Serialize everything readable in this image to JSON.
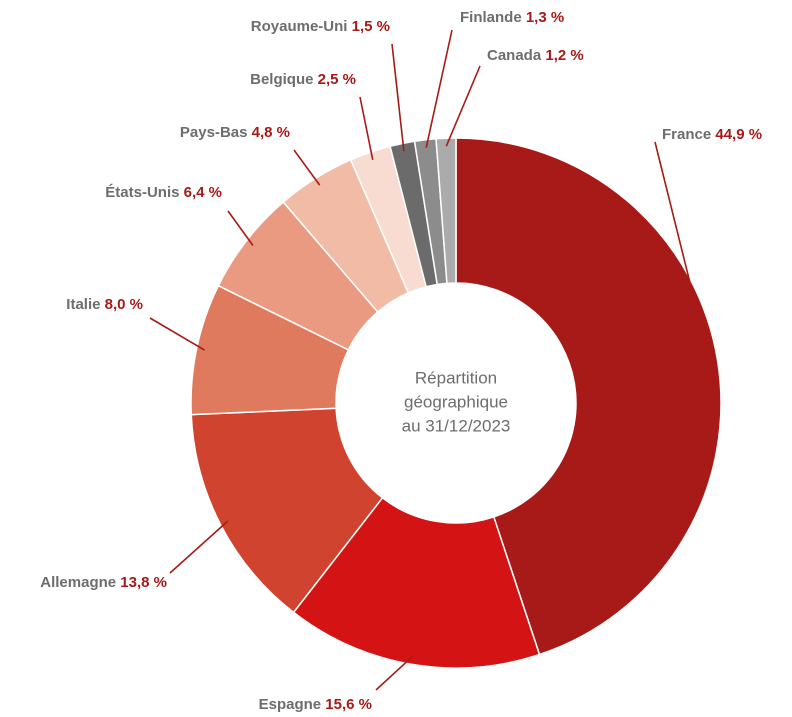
{
  "chart_data": {
    "type": "pie",
    "donut": true,
    "center_text": [
      "Répartition",
      "géographique",
      "au 31/12/2023"
    ],
    "categories": [
      "France",
      "Espagne",
      "Allemagne",
      "Italie",
      "États-Unis",
      "Pays-Bas",
      "Belgique",
      "Royaume-Uni",
      "Finlande",
      "Canada"
    ],
    "values": [
      44.9,
      15.6,
      13.8,
      8.0,
      6.4,
      4.8,
      2.5,
      1.5,
      1.3,
      1.2
    ],
    "value_labels": [
      "44,9 %",
      "15,6 %",
      "13,8 %",
      "8,0 %",
      "6,4 %",
      "4,8 %",
      "2,5 %",
      "1,5 %",
      "1,3 %",
      "1,2 %"
    ],
    "colors": [
      "#a81a17",
      "#d41414",
      "#d0432e",
      "#df7a5e",
      "#ea9a80",
      "#f2bba5",
      "#f8dbd1",
      "#6b6b6b",
      "#8c8c8c",
      "#ababab"
    ]
  }
}
